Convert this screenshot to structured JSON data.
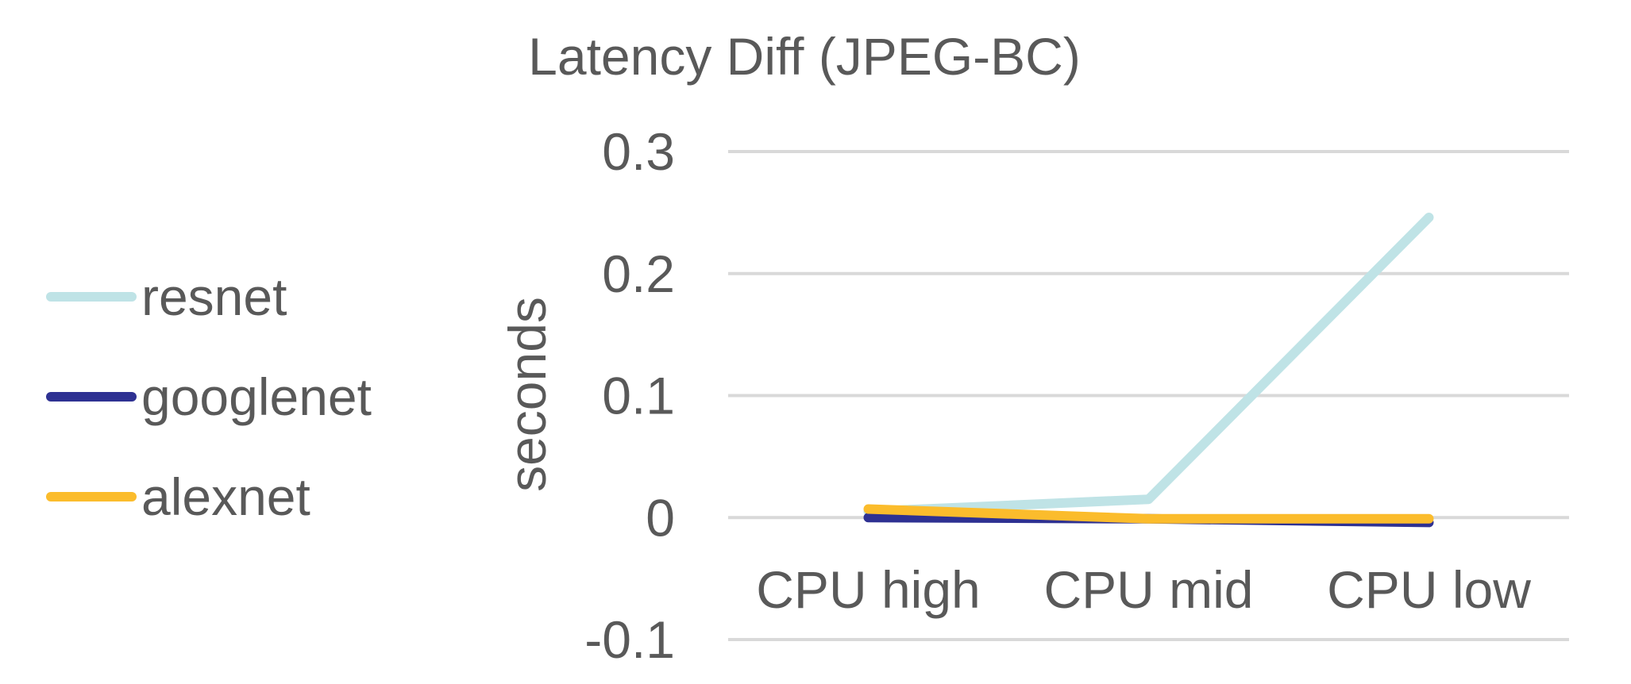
{
  "chart_data": {
    "type": "line",
    "title": "Latency Diff (JPEG-BC)",
    "xlabel": "",
    "ylabel": "seconds",
    "categories": [
      "CPU high",
      "CPU mid",
      "CPU low"
    ],
    "ylim": [
      -0.1,
      0.3
    ],
    "yticks": [
      "0.3",
      "0.2",
      "0.1",
      "0",
      "-0.1"
    ],
    "ytick_values": [
      0.3,
      0.2,
      0.1,
      0,
      -0.1
    ],
    "grid": true,
    "legend_position": "left",
    "series": [
      {
        "name": "resnet",
        "color": "#bfe3e6",
        "values": [
          0.005,
          0.015,
          0.246
        ]
      },
      {
        "name": "googlenet",
        "color": "#2e3192",
        "values": [
          0.0,
          -0.001,
          -0.004
        ]
      },
      {
        "name": "alexnet",
        "color": "#fbbc2c",
        "values": [
          0.007,
          -0.001,
          -0.001
        ]
      }
    ]
  }
}
